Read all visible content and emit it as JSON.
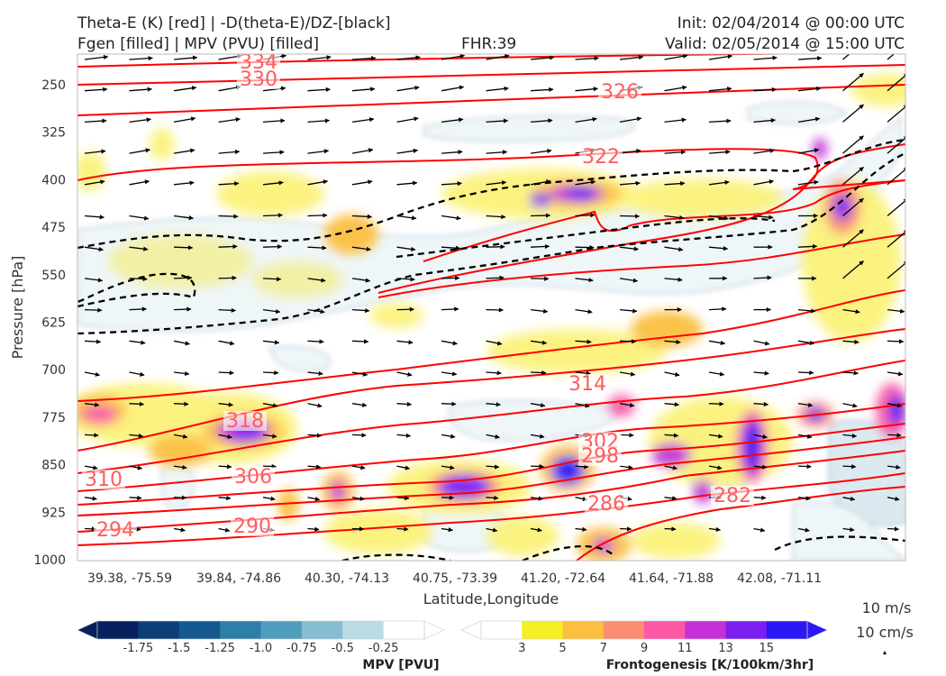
{
  "header": {
    "line1_left": "Theta-E (K) [red] | -D(theta-E)/DZ-[black]",
    "line2_left": "Fgen [filled] | MPV (PVU) [filled]",
    "fhr": "FHR:39",
    "init": "Init: 02/04/2014 @ 00:00 UTC",
    "valid": "Valid: 02/05/2014 @ 15:00 UTC"
  },
  "chart_data": {
    "type": "cross-section",
    "ylabel": "Pressure [hPa]",
    "xlabel": "Latitude,Longitude",
    "y_ticks": [
      "250",
      "325",
      "400",
      "475",
      "550",
      "625",
      "700",
      "775",
      "850",
      "925",
      "1000"
    ],
    "x_ticks": [
      "39.38, -75.59",
      "39.84, -74.86",
      "40.30, -74.13",
      "40.75, -73.39",
      "41.20, -72.64",
      "41.64, -71.88",
      "42.08, -71.11"
    ],
    "theta_e_labels": [
      "334",
      "330",
      "326",
      "322",
      "318",
      "314",
      "310",
      "306",
      "302",
      "298",
      "294",
      "290",
      "286",
      "282"
    ],
    "wind_legend": [
      "10 m/s",
      "10 cm/s"
    ],
    "mpv_colorbar": {
      "title": "MPV [PVU]",
      "ticks": [
        "-1.75",
        "-1.5",
        "-1.25",
        "-1.0",
        "-0.75",
        "-0.5",
        "-0.25"
      ],
      "colors": [
        "#08205e",
        "#0c3f78",
        "#14588f",
        "#2d7ea8",
        "#4f9dbc",
        "#85bdd2",
        "#bcdbe5",
        "#ffffff"
      ]
    },
    "fgen_colorbar": {
      "title": "Frontogenesis [K/100km/3hr]",
      "ticks": [
        "3",
        "5",
        "7",
        "9",
        "11",
        "13",
        "15"
      ],
      "colors": [
        "#ffffff",
        "#f5f024",
        "#fcbf40",
        "#fb8e72",
        "#fb58a6",
        "#c630d6",
        "#7a1ff0",
        "#2a18f5"
      ]
    },
    "colors": {
      "theta_e": "#ff0000",
      "stability": "#000000"
    }
  }
}
